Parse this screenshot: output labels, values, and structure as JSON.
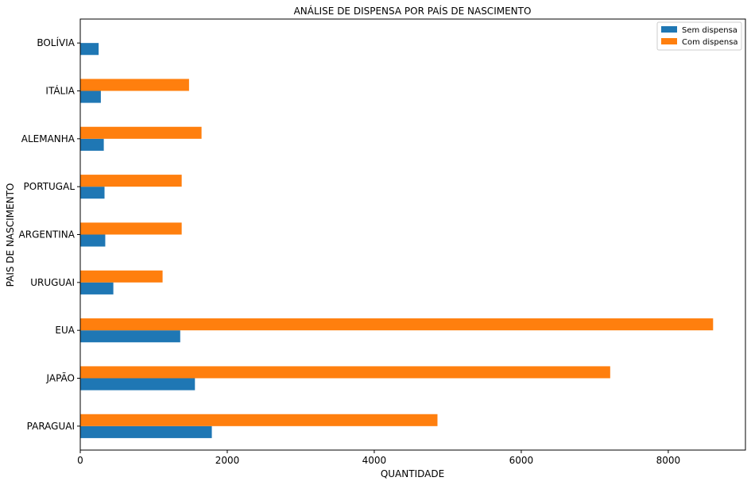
{
  "chart_data": {
    "type": "bar",
    "orientation": "horizontal",
    "title": "ANÁLISE DE DISPENSA POR PAÍS DE NASCIMENTO",
    "xlabel": "QUANTIDADE",
    "ylabel": "PAIS DE NASCIMENTO",
    "categories": [
      "PARAGUAI",
      "JAPÃO",
      "EUA",
      "URUGUAI",
      "ARGENTINA",
      "PORTUGAL",
      "ALEMANHA",
      "ITÁLIA",
      "BOLÍVIA"
    ],
    "series": [
      {
        "name": "Sem dispensa",
        "color": "#1f77b4",
        "values": [
          1790,
          1560,
          1360,
          450,
          340,
          330,
          320,
          280,
          250
        ]
      },
      {
        "name": "Com dispensa",
        "color": "#ff7f0e",
        "values": [
          4860,
          7210,
          8610,
          1120,
          1380,
          1380,
          1650,
          1480,
          0
        ]
      }
    ],
    "xlim": [
      0,
      9050
    ],
    "xticks": [
      "0",
      "2000",
      "4000",
      "6000",
      "8000"
    ],
    "xtick_values": [
      0,
      2000,
      4000,
      6000,
      8000
    ],
    "legend_position": "top-right",
    "grid": false
  }
}
